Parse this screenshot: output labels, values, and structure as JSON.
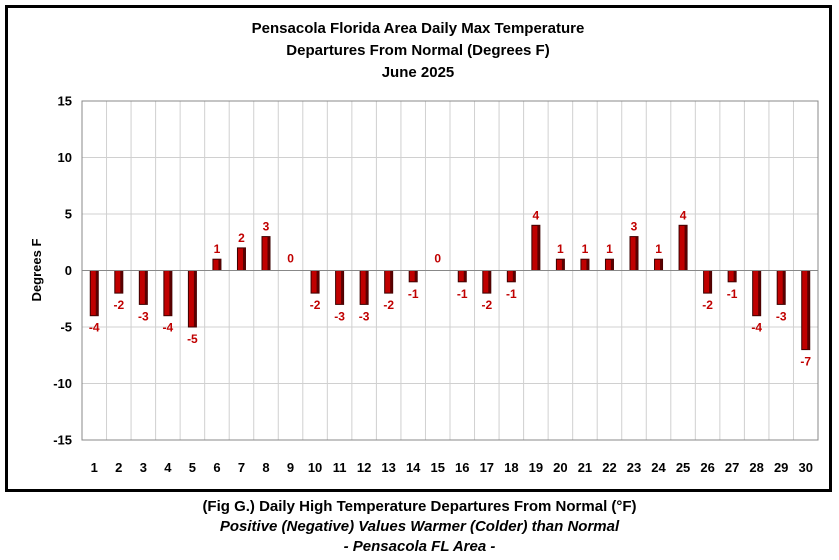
{
  "chart_data": {
    "type": "bar",
    "title_lines": [
      "Pensacola Florida Area Daily Max Temperature",
      "Departures From Normal (Degrees F)",
      "June 2025"
    ],
    "xlabel": "",
    "ylabel": "Degrees F",
    "ylim": [
      -15,
      15
    ],
    "yticks": [
      -15,
      -10,
      -5,
      0,
      5,
      10,
      15
    ],
    "grid": true,
    "legend": "none",
    "bar_color": "#c00000",
    "label_color": "#c00000",
    "categories": [
      "1",
      "2",
      "3",
      "4",
      "5",
      "6",
      "7",
      "8",
      "9",
      "10",
      "11",
      "12",
      "13",
      "14",
      "15",
      "16",
      "17",
      "18",
      "19",
      "20",
      "21",
      "22",
      "23",
      "24",
      "25",
      "26",
      "27",
      "28",
      "29",
      "30"
    ],
    "values": [
      -4,
      -2,
      -3,
      -4,
      -5,
      1,
      2,
      3,
      0,
      -2,
      -3,
      -3,
      -2,
      -1,
      0,
      -1,
      -2,
      -1,
      4,
      1,
      1,
      1,
      3,
      1,
      4,
      -2,
      -1,
      -4,
      -3,
      -7
    ]
  },
  "caption": {
    "line1": "(Fig G.) Daily High Temperature Departures From Normal (°F)",
    "line2": "Positive (Negative) Values Warmer (Colder) than Normal",
    "line3": "- Pensacola FL Area -"
  }
}
